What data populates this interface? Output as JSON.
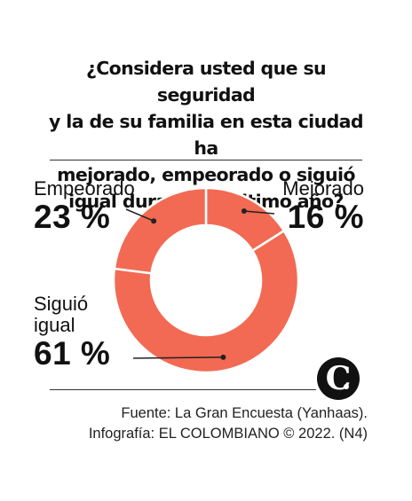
{
  "title": "¿Considera usted que su seguridad y la de su familia en esta ciudad ha mejorado, empeorado o siguió igual durante el último año?",
  "title_lines": [
    "¿Considera usted que su seguridad",
    "y la de su familia en esta ciudad ha",
    "mejorado, empeorado o siguió",
    "igual durante el último año?"
  ],
  "chart_data": {
    "type": "pie",
    "donut": true,
    "color": "#f26a53",
    "separator_color": "#ffffff",
    "categories": [
      "Mejorado",
      "Siguió igual",
      "Empeorado"
    ],
    "values": [
      16,
      61,
      23
    ],
    "value_labels": [
      "16 %",
      "61 %",
      "23 %"
    ]
  },
  "labels": {
    "mejorado": {
      "name": "Mejorado",
      "pct": "16 %"
    },
    "empeorado": {
      "name": "Empeorado",
      "pct": "23 %"
    },
    "siguio": {
      "name_line1": "Siguió",
      "name_line2": "igual",
      "pct": "61 %"
    }
  },
  "source": {
    "line1": "Fuente: La Gran Encuesta (Yanhaas).",
    "line2": "Infografía: EL COLOMBIANO © 2022. (N4)"
  },
  "logo": {
    "letter": "C",
    "icon": "el-colombiano-logo-icon"
  }
}
